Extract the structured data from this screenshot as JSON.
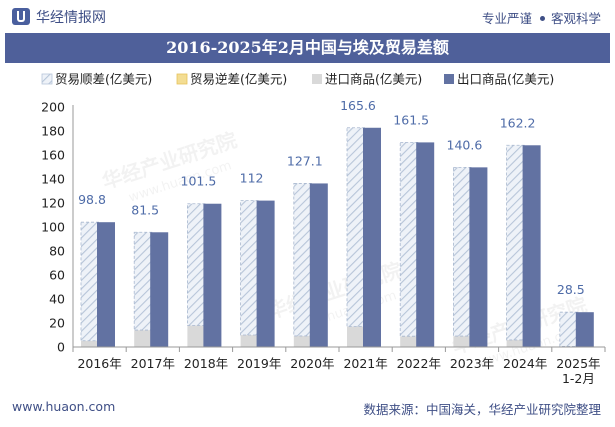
{
  "header": {
    "brand": "华经情报网",
    "tagline_left": "专业严谨",
    "tagline_right": "客观科学"
  },
  "chart_data": {
    "type": "bar",
    "title": "2016-2025年2月中国与埃及贸易差额",
    "categories": [
      "2016年",
      "2017年",
      "2018年",
      "2019年",
      "2020年",
      "2021年",
      "2022年",
      "2023年",
      "2024年",
      "2025年1-2月"
    ],
    "series": [
      {
        "name": "贸易顺差(亿美元)",
        "values": [
          98.8,
          81.5,
          101.5,
          112,
          127.1,
          165.6,
          161.5,
          140.6,
          162.2,
          28.5
        ],
        "color": "#dde4ee",
        "pattern": "hatch"
      },
      {
        "name": "贸易逆差(亿美元)",
        "values": [
          0,
          0,
          0,
          0,
          0,
          0,
          0,
          0,
          0,
          0
        ],
        "color": "#f3dd93"
      },
      {
        "name": "进口商品(亿美元)",
        "values": [
          5.2,
          14.1,
          17.9,
          10.0,
          9.2,
          17.1,
          9.0,
          9.1,
          5.9,
          0.5
        ],
        "color": "#d9d9d9"
      },
      {
        "name": "出口商品(亿美元)",
        "values": [
          104.0,
          95.6,
          119.4,
          122.0,
          136.3,
          182.7,
          170.5,
          149.7,
          168.1,
          29.0
        ],
        "color": "#6272a2"
      }
    ],
    "data_labels": [
      "98.8",
      "81.5",
      "101.5",
      "112",
      "127.1",
      "165.6",
      "161.5",
      "140.6",
      "162.2",
      "28.5"
    ],
    "y_ticks": [
      "0",
      "20",
      "40",
      "60",
      "80",
      "100",
      "120",
      "140",
      "160",
      "180",
      "200"
    ],
    "ylim": [
      0,
      200
    ],
    "legend_position": "top",
    "grid": false
  },
  "watermark": {
    "text": "华经产业研究院",
    "url": "www.huaon.com"
  },
  "footer": {
    "website": "www.huaon.com",
    "source": "数据来源：中国海关，华经产业研究院整理"
  }
}
